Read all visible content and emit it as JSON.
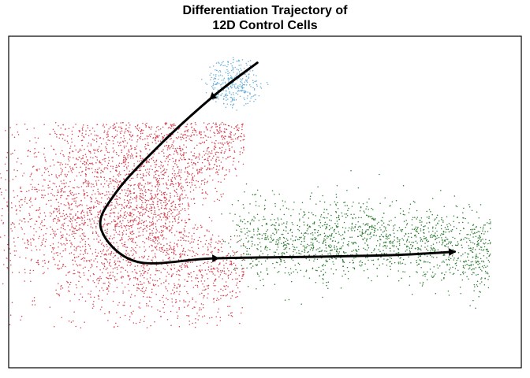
{
  "title_lines": [
    "Differentiation Trajectory of",
    "12D Control Cells"
  ],
  "chart_data": {
    "type": "scatter",
    "title": "Differentiation Trajectory of 12D Control Cells",
    "xlabel": "",
    "ylabel": "",
    "xlim": [
      0,
      100
    ],
    "ylim": [
      0,
      100
    ],
    "axes_ticks": false,
    "grid": false,
    "legend": "none",
    "series": [
      {
        "color": "#6BAED6",
        "center": [
          44,
          86
        ],
        "spread": [
          4,
          6
        ],
        "count": 320,
        "shape": "spiky"
      },
      {
        "color": "#D6404E",
        "center": [
          26,
          48
        ],
        "spread": [
          12,
          14
        ],
        "count": 3600,
        "shape": "crescent"
      },
      {
        "color": "#2E7D32",
        "center": [
          70,
          31
        ],
        "spread": [
          18,
          10
        ],
        "count": 1600,
        "shape": "band"
      }
    ],
    "trajectory": {
      "color": "#000000",
      "path": [
        [
          48.5,
          92
        ],
        [
          40,
          82
        ],
        [
          30,
          68
        ],
        [
          21,
          53
        ],
        [
          18,
          42
        ],
        [
          25,
          32
        ],
        [
          40,
          33
        ],
        [
          60,
          33.5
        ],
        [
          75,
          34
        ],
        [
          87,
          35
        ]
      ],
      "arrows_at": [
        [
          39.5,
          81
        ],
        [
          40.5,
          32.9
        ],
        [
          87,
          35
        ]
      ]
    }
  }
}
